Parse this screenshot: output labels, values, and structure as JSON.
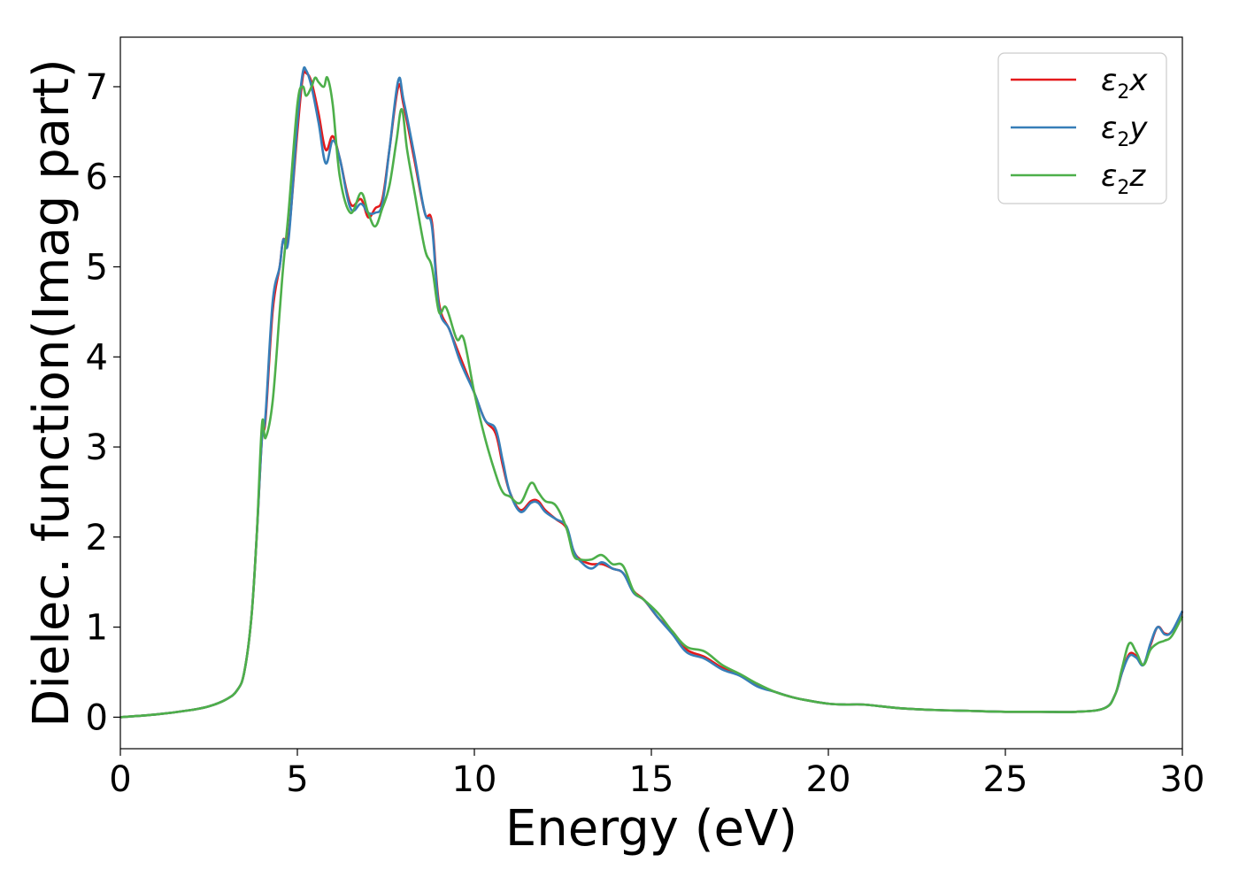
{
  "chart_data": {
    "type": "line",
    "xlabel": "Energy (eV)",
    "ylabel": "Dielec. function(Imag part)",
    "xlim": [
      0,
      30
    ],
    "ylim": [
      -0.35,
      7.55
    ],
    "xticks": [
      0,
      5,
      10,
      15,
      20,
      25,
      30
    ],
    "yticks": [
      0,
      1,
      2,
      3,
      4,
      5,
      6,
      7
    ],
    "grid": false,
    "legend_position": "top-right",
    "series": [
      {
        "name": "ε2x",
        "legend_base": "ε",
        "legend_sub": "2",
        "legend_var": "x",
        "color": "#e41a1c",
        "x": [
          0,
          1,
          2,
          2.5,
          3,
          3.3,
          3.5,
          3.7,
          3.85,
          4.0,
          4.1,
          4.3,
          4.5,
          4.6,
          4.75,
          5.0,
          5.15,
          5.25,
          5.4,
          5.6,
          5.8,
          6.0,
          6.2,
          6.5,
          6.8,
          7.0,
          7.2,
          7.4,
          7.6,
          7.85,
          8.0,
          8.3,
          8.6,
          8.8,
          9.0,
          9.3,
          9.6,
          10.0,
          10.3,
          10.6,
          10.8,
          11.0,
          11.3,
          11.6,
          11.8,
          12.0,
          12.3,
          12.6,
          12.8,
          13.0,
          13.3,
          13.6,
          13.9,
          14.2,
          14.5,
          14.8,
          15.2,
          15.6,
          16.0,
          16.5,
          17.0,
          17.5,
          18.0,
          18.5,
          19.0,
          19.5,
          20.0,
          20.5,
          21.0,
          22.0,
          23.0,
          24.0,
          25.0,
          26.0,
          27.0,
          27.8,
          28.1,
          28.3,
          28.5,
          28.7,
          28.9,
          29.1,
          29.3,
          29.5,
          29.7,
          30.0
        ],
        "y": [
          0.0,
          0.03,
          0.08,
          0.12,
          0.2,
          0.3,
          0.5,
          1.1,
          2.0,
          3.1,
          3.3,
          4.5,
          5.0,
          5.3,
          5.35,
          6.5,
          7.1,
          7.15,
          7.05,
          6.7,
          6.3,
          6.45,
          6.2,
          5.7,
          5.75,
          5.55,
          5.65,
          5.75,
          6.3,
          7.0,
          6.8,
          6.2,
          5.6,
          5.5,
          4.6,
          4.3,
          4.0,
          3.6,
          3.3,
          3.15,
          2.8,
          2.5,
          2.3,
          2.4,
          2.4,
          2.3,
          2.2,
          2.1,
          1.85,
          1.75,
          1.7,
          1.7,
          1.65,
          1.6,
          1.4,
          1.3,
          1.1,
          0.95,
          0.75,
          0.67,
          0.55,
          0.47,
          0.35,
          0.28,
          0.22,
          0.18,
          0.15,
          0.14,
          0.14,
          0.1,
          0.08,
          0.07,
          0.06,
          0.06,
          0.06,
          0.1,
          0.25,
          0.5,
          0.7,
          0.68,
          0.58,
          0.8,
          1.0,
          0.93,
          0.95,
          1.17
        ]
      },
      {
        "name": "ε2y",
        "legend_base": "ε",
        "legend_sub": "2",
        "legend_var": "y",
        "color": "#377eb8",
        "x": [
          0,
          1,
          2,
          2.5,
          3,
          3.3,
          3.5,
          3.7,
          3.85,
          4.0,
          4.1,
          4.3,
          4.5,
          4.6,
          4.75,
          5.0,
          5.15,
          5.25,
          5.4,
          5.6,
          5.8,
          6.0,
          6.2,
          6.5,
          6.8,
          7.0,
          7.2,
          7.4,
          7.6,
          7.85,
          8.0,
          8.3,
          8.6,
          8.8,
          9.0,
          9.3,
          9.6,
          10.0,
          10.3,
          10.6,
          10.8,
          11.0,
          11.3,
          11.6,
          11.8,
          12.0,
          12.3,
          12.6,
          12.8,
          13.0,
          13.3,
          13.6,
          13.9,
          14.2,
          14.5,
          14.8,
          15.2,
          15.6,
          16.0,
          16.5,
          17.0,
          17.5,
          18.0,
          18.5,
          19.0,
          19.5,
          20.0,
          20.5,
          21.0,
          22.0,
          23.0,
          24.0,
          25.0,
          26.0,
          27.0,
          27.8,
          28.1,
          28.3,
          28.5,
          28.7,
          28.9,
          29.1,
          29.3,
          29.5,
          29.7,
          30.0
        ],
        "y": [
          0.0,
          0.03,
          0.08,
          0.12,
          0.2,
          0.3,
          0.5,
          1.1,
          2.0,
          3.1,
          3.35,
          4.6,
          5.0,
          5.3,
          5.3,
          6.6,
          7.15,
          7.18,
          7.0,
          6.6,
          6.15,
          6.4,
          6.2,
          5.65,
          5.7,
          5.6,
          5.6,
          5.7,
          6.3,
          7.07,
          6.85,
          6.25,
          5.6,
          5.45,
          4.55,
          4.3,
          3.95,
          3.6,
          3.3,
          3.2,
          2.85,
          2.5,
          2.28,
          2.38,
          2.38,
          2.28,
          2.2,
          2.12,
          1.85,
          1.73,
          1.65,
          1.72,
          1.65,
          1.6,
          1.38,
          1.3,
          1.1,
          0.92,
          0.72,
          0.65,
          0.53,
          0.46,
          0.34,
          0.28,
          0.22,
          0.18,
          0.15,
          0.14,
          0.14,
          0.1,
          0.08,
          0.07,
          0.06,
          0.06,
          0.06,
          0.1,
          0.25,
          0.5,
          0.68,
          0.66,
          0.58,
          0.82,
          1.0,
          0.92,
          0.95,
          1.18
        ]
      },
      {
        "name": "ε2z",
        "legend_base": "ε",
        "legend_sub": "2",
        "legend_var": "z",
        "color": "#4daf4a",
        "x": [
          0,
          1,
          2,
          2.5,
          3,
          3.3,
          3.5,
          3.7,
          3.85,
          4.0,
          4.1,
          4.3,
          4.5,
          4.6,
          4.75,
          5.0,
          5.15,
          5.25,
          5.4,
          5.5,
          5.6,
          5.75,
          5.85,
          6.0,
          6.2,
          6.5,
          6.8,
          7.0,
          7.2,
          7.4,
          7.6,
          7.8,
          7.95,
          8.1,
          8.3,
          8.6,
          8.8,
          9.0,
          9.2,
          9.5,
          9.7,
          10.0,
          10.3,
          10.6,
          10.8,
          11.0,
          11.3,
          11.6,
          11.8,
          12.0,
          12.3,
          12.6,
          12.8,
          13.0,
          13.3,
          13.6,
          13.9,
          14.2,
          14.5,
          14.8,
          15.2,
          15.6,
          16.0,
          16.5,
          17.0,
          17.5,
          18.0,
          18.5,
          19.0,
          19.5,
          20.0,
          20.5,
          21.0,
          22.0,
          23.0,
          24.0,
          25.0,
          26.0,
          27.0,
          27.8,
          28.1,
          28.3,
          28.5,
          28.7,
          28.9,
          29.1,
          29.3,
          29.5,
          29.7,
          30.0
        ],
        "y": [
          0.0,
          0.03,
          0.08,
          0.12,
          0.2,
          0.3,
          0.5,
          1.1,
          2.0,
          3.25,
          3.1,
          3.5,
          4.5,
          5.0,
          5.6,
          6.8,
          7.0,
          6.9,
          7.0,
          7.1,
          7.05,
          7.0,
          7.1,
          6.8,
          6.0,
          5.6,
          5.82,
          5.6,
          5.45,
          5.65,
          5.9,
          6.4,
          6.75,
          6.3,
          5.85,
          5.2,
          5.0,
          4.5,
          4.55,
          4.2,
          4.2,
          3.6,
          3.1,
          2.7,
          2.5,
          2.45,
          2.38,
          2.6,
          2.5,
          2.4,
          2.35,
          2.1,
          1.8,
          1.75,
          1.75,
          1.8,
          1.7,
          1.68,
          1.4,
          1.3,
          1.15,
          0.95,
          0.78,
          0.73,
          0.58,
          0.48,
          0.37,
          0.28,
          0.22,
          0.18,
          0.15,
          0.14,
          0.14,
          0.1,
          0.08,
          0.07,
          0.06,
          0.06,
          0.06,
          0.1,
          0.25,
          0.55,
          0.82,
          0.72,
          0.58,
          0.75,
          0.82,
          0.85,
          0.9,
          1.12
        ]
      }
    ]
  }
}
